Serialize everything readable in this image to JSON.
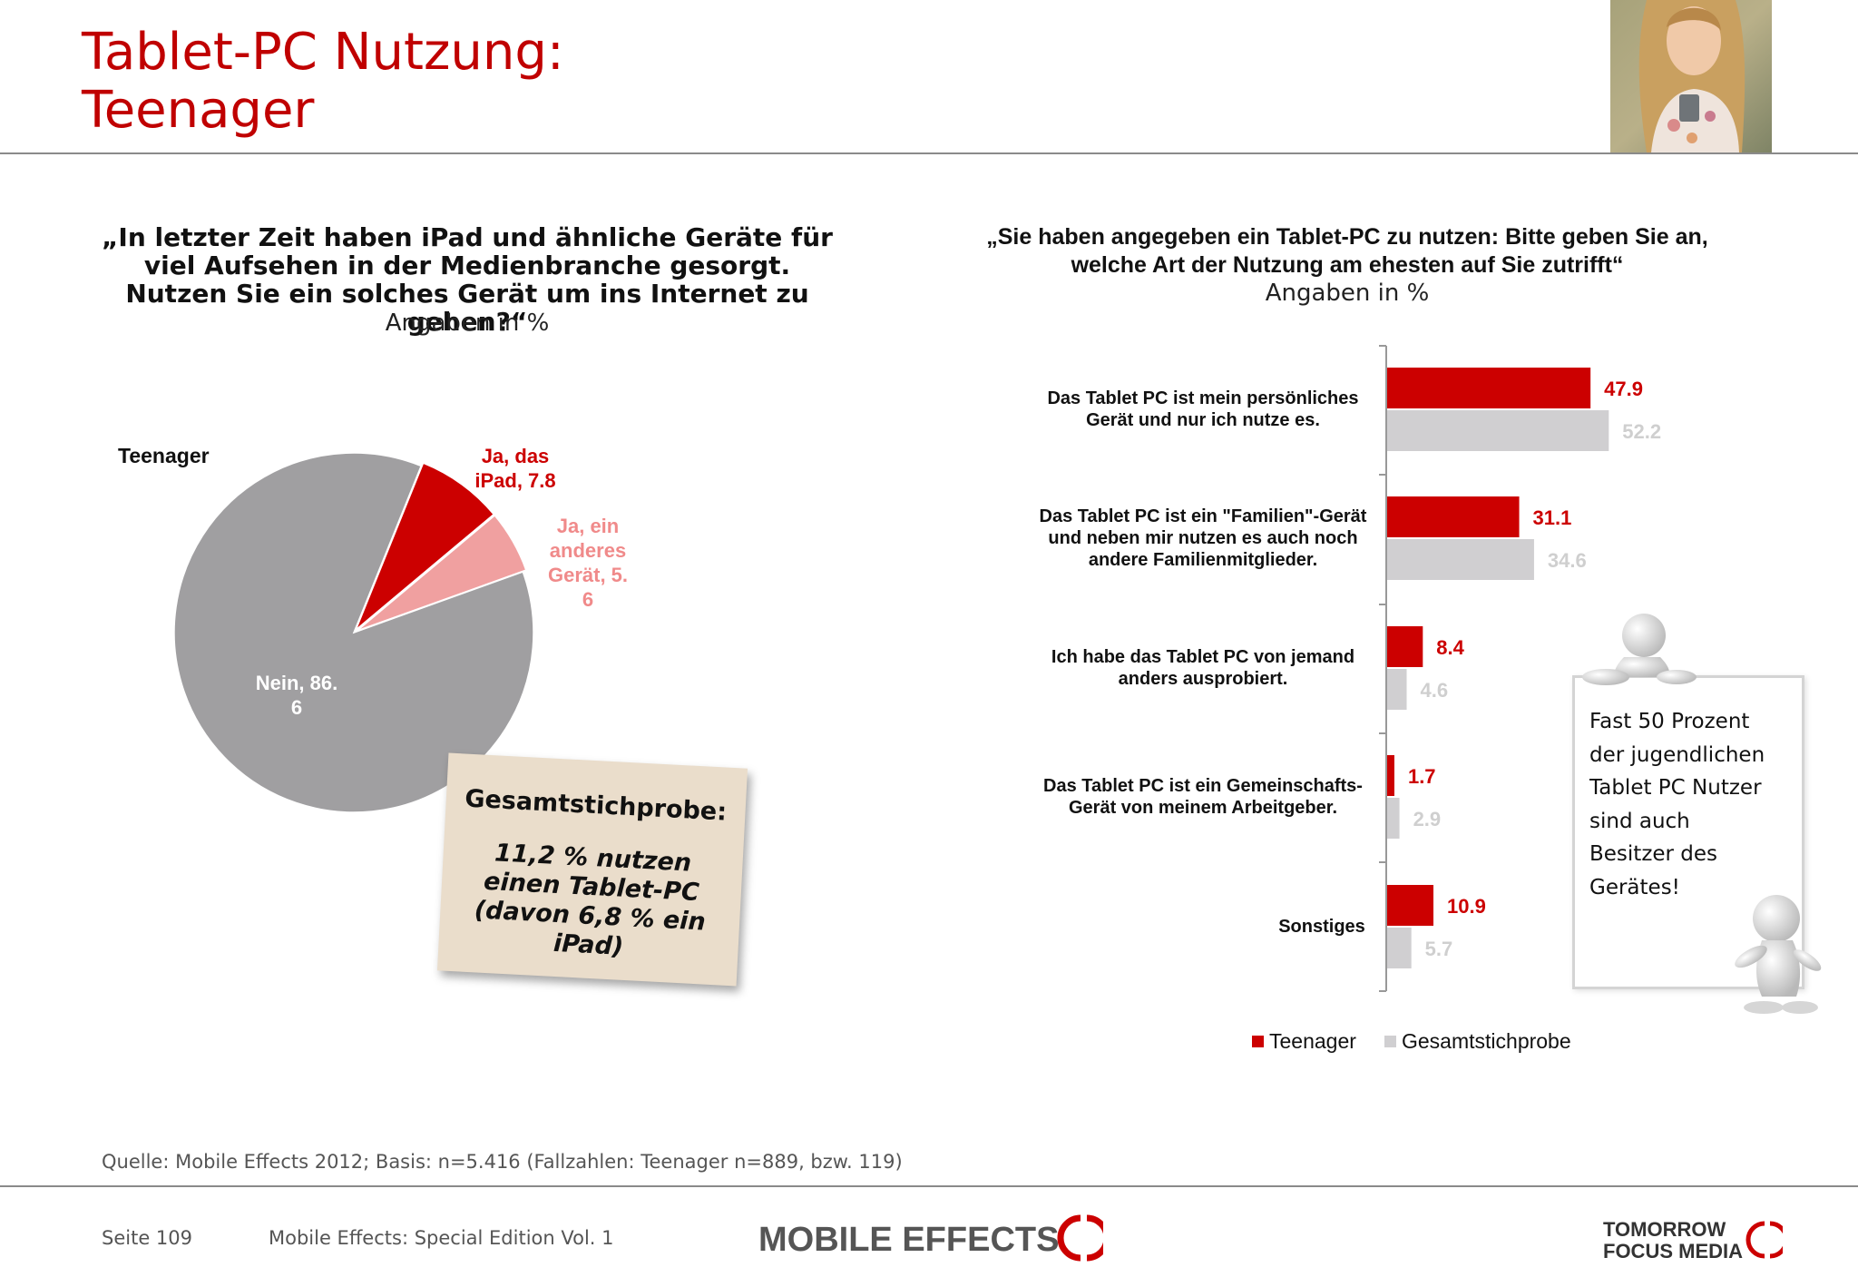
{
  "title": {
    "line1": "Tablet-PC Nutzung:",
    "line2": "Teenager"
  },
  "left": {
    "question": "„In letzter Zeit haben iPad und ähnliche Geräte für viel Aufsehen in der Medienbranche gesorgt. Nutzen Sie ein solches Gerät um ins Internet zu gehen?“",
    "unit": "Angaben in %",
    "group_label": "Teenager",
    "note": {
      "heading": "Gesamtstichprobe:",
      "body": "11,2 % nutzen einen Tablet-PC (davon 6,8 % ein iPad)"
    }
  },
  "right": {
    "question": "„Sie haben angegeben ein Tablet-PC zu nutzen: Bitte geben Sie an, welche Art der Nutzung am ehesten auf Sie zutrifft“",
    "unit": "Angaben in %",
    "callout": "Fast 50 Prozent der jugendlichen Tablet PC Nutzer sind auch Besitzer des Gerätes!"
  },
  "chart_data": [
    {
      "type": "pie",
      "slices": [
        {
          "label_lines": [
            "Nein, 86.",
            "6"
          ],
          "value": 86.6,
          "color": "#a09fa1"
        },
        {
          "label_lines": [
            "Ja, das",
            "iPad, 7.8"
          ],
          "value": 7.8,
          "color": "#cc0000"
        },
        {
          "label_lines": [
            "Ja, ein",
            "anderes",
            "Gerät, 5.",
            "6"
          ],
          "value": 5.6,
          "color": "#f0a0a0"
        }
      ]
    },
    {
      "type": "bar",
      "orientation": "horizontal",
      "xlim": [
        0,
        100
      ],
      "categories": [
        [
          "Das Tablet PC ist mein persönliches",
          "Gerät und nur ich nutze es."
        ],
        [
          "Das Tablet PC ist ein \"Familien\"-Gerät",
          "und neben mir nutzen es auch noch",
          "andere Familienmitglieder."
        ],
        [
          "Ich habe das Tablet PC von jemand",
          "anders ausprobiert."
        ],
        [
          "Das Tablet PC ist ein Gemeinschafts-",
          "Gerät von meinem Arbeitgeber."
        ],
        [
          "Sonstiges"
        ]
      ],
      "series": [
        {
          "name": "Teenager",
          "values": [
            47.9,
            31.1,
            8.4,
            1.7,
            10.9
          ],
          "color": "#cc0000"
        },
        {
          "name": "Gesamtstichprobe",
          "values": [
            52.2,
            34.6,
            4.6,
            2.9,
            5.7
          ],
          "color": "#d0cfd1"
        }
      ],
      "legend": "bottom"
    }
  ],
  "footer": {
    "source": "Quelle: Mobile Effects 2012; Basis: n=5.416 (Fallzahlen: Teenager n=889, bzw. 119)",
    "page": "Seite 109",
    "publication": "Mobile Effects: Special Edition Vol. 1",
    "logo_left": "MOBILE EFFECTS",
    "logo_right_line1": "TOMORROW",
    "logo_right_line2": "FOCUS MEDIA"
  }
}
